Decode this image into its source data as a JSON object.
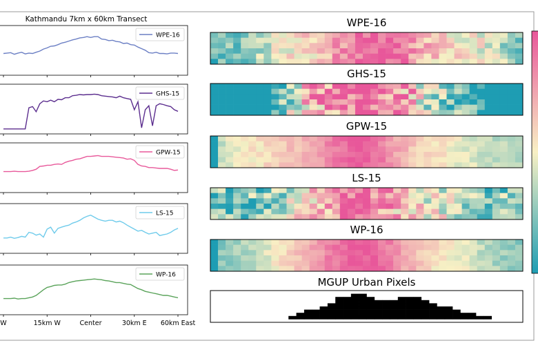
{
  "figure": {
    "left_title": "Kathmandu 7km x 60km Transect",
    "colors": {
      "WPE-16": "#6b7fc4",
      "GHS-15": "#5b2d8e",
      "GPW-15": "#e8589a",
      "LS-15": "#6fcbeb",
      "WP-16": "#5aa35a",
      "heat_low": "#1e9db3",
      "heat_mid": "#f8f0c4",
      "heat_high": "#e8579a",
      "urban": "#000000"
    }
  },
  "chart_data": [
    {
      "type": "line",
      "title": "",
      "xlabel": "",
      "ylabel": "",
      "xlim": [
        0,
        48
      ],
      "ylim": [
        0,
        1
      ],
      "tick_labels": [
        "W",
        "15km W",
        "Center",
        "30km E",
        "60km East"
      ],
      "tick_positions": [
        0,
        12,
        24,
        36,
        48
      ],
      "grid": false,
      "legend_position": "upper right",
      "series": [
        {
          "name": "WPE-16",
          "values": [
            0.44,
            0.45,
            0.46,
            0.42,
            0.45,
            0.47,
            0.43,
            0.45,
            0.44,
            0.47,
            0.5,
            0.55,
            0.58,
            0.62,
            0.63,
            0.66,
            0.7,
            0.72,
            0.75,
            0.78,
            0.8,
            0.83,
            0.84,
            0.86,
            0.84,
            0.86,
            0.86,
            0.8,
            0.79,
            0.76,
            0.77,
            0.74,
            0.73,
            0.69,
            0.7,
            0.66,
            0.65,
            0.6,
            0.56,
            0.52,
            0.46,
            0.45,
            0.47,
            0.44,
            0.44,
            0.43,
            0.45,
            0.45,
            0.44
          ]
        },
        {
          "name": "GHS-15",
          "values": [
            0.02,
            0.02,
            0.02,
            0.02,
            0.02,
            0.02,
            0.02,
            0.55,
            0.58,
            0.45,
            0.65,
            0.72,
            0.7,
            0.74,
            0.7,
            0.76,
            0.75,
            0.8,
            0.8,
            0.85,
            0.86,
            0.88,
            0.87,
            0.88,
            0.88,
            0.89,
            0.88,
            0.85,
            0.84,
            0.83,
            0.82,
            0.8,
            0.84,
            0.8,
            0.78,
            0.76,
            0.5,
            0.7,
            0.05,
            0.5,
            0.6,
            0.1,
            0.6,
            0.65,
            0.63,
            0.6,
            0.58,
            0.5,
            0.46
          ]
        },
        {
          "name": "GPW-15",
          "values": [
            0.42,
            0.42,
            0.42,
            0.43,
            0.42,
            0.42,
            0.42,
            0.43,
            0.45,
            0.48,
            0.55,
            0.56,
            0.58,
            0.58,
            0.6,
            0.61,
            0.6,
            0.65,
            0.68,
            0.7,
            0.73,
            0.74,
            0.77,
            0.8,
            0.8,
            0.81,
            0.82,
            0.8,
            0.8,
            0.8,
            0.79,
            0.78,
            0.77,
            0.76,
            0.73,
            0.74,
            0.7,
            0.6,
            0.56,
            0.55,
            0.52,
            0.52,
            0.51,
            0.5,
            0.5,
            0.5,
            0.48,
            0.45,
            0.46
          ]
        },
        {
          "name": "LS-15",
          "values": [
            0.28,
            0.28,
            0.3,
            0.27,
            0.29,
            0.32,
            0.3,
            0.42,
            0.4,
            0.35,
            0.38,
            0.3,
            0.5,
            0.55,
            0.4,
            0.52,
            0.55,
            0.58,
            0.6,
            0.65,
            0.68,
            0.72,
            0.78,
            0.82,
            0.85,
            0.8,
            0.75,
            0.72,
            0.7,
            0.72,
            0.72,
            0.68,
            0.7,
            0.66,
            0.6,
            0.55,
            0.5,
            0.45,
            0.47,
            0.42,
            0.38,
            0.4,
            0.42,
            0.34,
            0.36,
            0.38,
            0.42,
            0.48,
            0.52
          ]
        },
        {
          "name": "WP-16",
          "values": [
            0.3,
            0.3,
            0.3,
            0.31,
            0.29,
            0.3,
            0.3,
            0.32,
            0.34,
            0.38,
            0.45,
            0.52,
            0.58,
            0.6,
            0.63,
            0.64,
            0.64,
            0.66,
            0.7,
            0.72,
            0.74,
            0.75,
            0.76,
            0.77,
            0.78,
            0.79,
            0.78,
            0.77,
            0.75,
            0.74,
            0.72,
            0.7,
            0.7,
            0.68,
            0.66,
            0.65,
            0.6,
            0.55,
            0.52,
            0.48,
            0.46,
            0.44,
            0.42,
            0.4,
            0.38,
            0.38,
            0.36,
            0.34,
            0.32
          ]
        }
      ]
    },
    {
      "type": "heatmap",
      "panels": [
        {
          "name": "WPE-16",
          "profile": [
            -0.7,
            -0.65,
            -0.6,
            -0.55,
            -0.5,
            -0.4,
            -0.3,
            -0.2,
            -0.1,
            0.0,
            0.05,
            0.1,
            0.15,
            0.2,
            0.3,
            0.4,
            0.5,
            0.6,
            0.7,
            0.8,
            0.85,
            0.9,
            0.95,
            0.92,
            0.85,
            0.75,
            0.6,
            0.45,
            0.35,
            0.25,
            0.2,
            0.15,
            0.1,
            0.05,
            0.0,
            -0.05,
            -0.1,
            -0.2,
            -0.3,
            -0.4,
            -0.5
          ],
          "noise": 0.35,
          "seed": 11
        },
        {
          "name": "GHS-15",
          "profile": [
            -1.0,
            -1.0,
            -1.0,
            -1.0,
            -1.0,
            -1.0,
            -1.0,
            -1.0,
            -0.8,
            -0.5,
            -0.2,
            0.1,
            0.3,
            0.5,
            0.5,
            0.6,
            0.7,
            0.8,
            0.9,
            0.95,
            0.95,
            0.9,
            0.85,
            0.7,
            0.6,
            0.5,
            0.3,
            0.1,
            -0.1,
            -0.3,
            -0.5,
            -0.6,
            -0.7,
            -0.8,
            -0.9,
            -0.9,
            -1.0,
            -1.0,
            -1.0,
            -1.0,
            -1.0
          ],
          "noise": 0.7,
          "seed": 23
        },
        {
          "name": "GPW-15",
          "profile": [
            -1.0,
            -0.2,
            -0.1,
            -0.05,
            0.0,
            0.05,
            0.1,
            0.15,
            0.2,
            0.25,
            0.3,
            0.35,
            0.4,
            0.45,
            0.55,
            0.65,
            0.75,
            0.85,
            0.95,
            0.98,
            0.95,
            0.85,
            0.75,
            0.6,
            0.5,
            0.4,
            0.3,
            0.2,
            0.15,
            0.1,
            0.05,
            0.0,
            -0.05,
            -0.1,
            -0.15,
            -0.2,
            -0.25,
            -0.3,
            -0.3,
            -0.3,
            -0.3
          ],
          "noise": 0.15,
          "seed": 37
        },
        {
          "name": "LS-15",
          "profile": [
            -0.6,
            -0.6,
            -0.65,
            -0.7,
            -0.6,
            -0.55,
            -0.6,
            -0.5,
            -0.45,
            -0.4,
            -0.2,
            0.0,
            0.2,
            0.3,
            0.4,
            0.5,
            0.6,
            0.7,
            0.8,
            0.85,
            0.8,
            0.7,
            0.6,
            0.5,
            0.4,
            0.3,
            0.2,
            0.1,
            0.05,
            0.0,
            -0.1,
            -0.2,
            -0.3,
            -0.35,
            -0.4,
            -0.45,
            -0.5,
            -0.55,
            -0.55,
            -0.6,
            -0.6
          ],
          "noise": 0.55,
          "seed": 41
        },
        {
          "name": "WP-16",
          "profile": [
            -1.0,
            -0.5,
            -0.45,
            -0.4,
            -0.35,
            -0.3,
            -0.2,
            -0.1,
            0.0,
            0.1,
            0.2,
            0.3,
            0.4,
            0.5,
            0.6,
            0.7,
            0.8,
            0.9,
            0.95,
            0.98,
            0.95,
            0.9,
            0.8,
            0.7,
            0.6,
            0.5,
            0.4,
            0.3,
            0.2,
            0.1,
            0.05,
            0.0,
            -0.05,
            -0.1,
            -0.2,
            -0.25,
            -0.3,
            -0.35,
            -0.4,
            -0.45,
            -0.5
          ],
          "noise": 0.15,
          "seed": 53
        }
      ],
      "urban_panel": {
        "name": "MGUP Urban Pixels",
        "rows": [
          "0000000000000000000000000000000000000000",
          "0000000000000000001100000000000000000000",
          "0000000000000000111110001110000000000000",
          "0000000000000000111111111111000000000000",
          "0000000000000001111111111111100000000000",
          "0000000000000011111111111111111000000000",
          "0000000000001111111111111111111100000000",
          "0000000000011111111111111111111111000000",
          "0000000000111111111111111111111111110000",
          "0000000000000000000000000000000000000000"
        ]
      }
    }
  ]
}
